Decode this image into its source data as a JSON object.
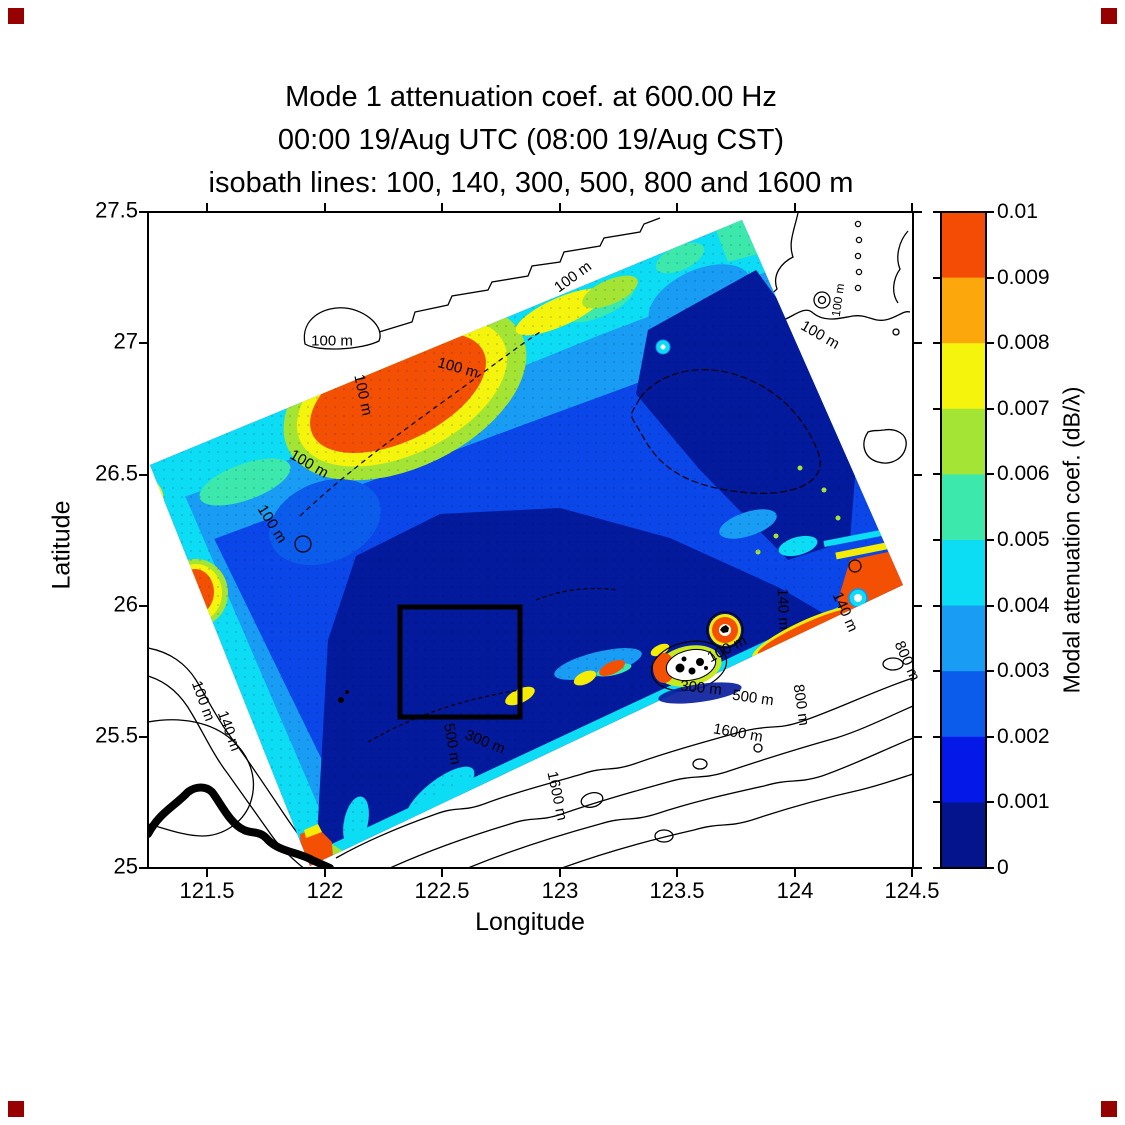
{
  "corner_marker_color": "#970000",
  "title": {
    "line1": "Mode 1 attenuation coef. at 600.00 Hz",
    "line2": "00:00 19/Aug UTC (08:00 19/Aug CST)",
    "line3": "isobath lines: 100, 140, 300, 500, 800 and 1600 m"
  },
  "axes": {
    "xlabel": "Longitude",
    "ylabel": "Latitude",
    "x_tick_labels": [
      "121.5",
      "122",
      "122.5",
      "123",
      "123.5",
      "124",
      "124.5"
    ],
    "y_tick_labels": [
      "27.5",
      "27",
      "26.5",
      "26",
      "25.5",
      "25"
    ]
  },
  "colorbar": {
    "label": "Modal attenuation coef. (dB/λ)",
    "tick_labels": [
      "0.01",
      "0.009",
      "0.008",
      "0.007",
      "0.006",
      "0.005",
      "0.004",
      "0.003",
      "0.002",
      "0.001",
      "0"
    ],
    "colors_top_to_bottom": [
      "#f44c04",
      "#fca80c",
      "#f4f40c",
      "#a4e434",
      "#3ce8ac",
      "#0cdcf4",
      "#189cf4",
      "#0c5cec",
      "#0418e8",
      "#04148c"
    ]
  },
  "map": {
    "contour_labels": [
      "100 m",
      "100 m",
      "100 m",
      "100 m",
      "100 m",
      "100 m",
      "100 m",
      "100 m",
      "100 m",
      "140 m",
      "140 m",
      "140 m",
      "100 m",
      "300 m",
      "500 m",
      "800 m",
      "1600 m",
      "300 m",
      "500 m",
      "800 m",
      "1600 m"
    ]
  },
  "chart_data": {
    "type": "heatmap",
    "title": "Mode 1 attenuation coef. at 600.00 Hz",
    "subtitle": "00:00 19/Aug UTC (08:00 19/Aug CST)",
    "note": "isobath lines: 100, 140, 300, 500, 800 and 1600 m",
    "xlabel": "Longitude",
    "ylabel": "Latitude",
    "xlim": [
      121.25,
      124.5
    ],
    "ylim": [
      25.0,
      27.5
    ],
    "x_ticks": [
      121.5,
      122.0,
      122.5,
      123.0,
      123.5,
      124.0,
      124.5
    ],
    "y_ticks": [
      25.0,
      25.5,
      26.0,
      26.5,
      27.0,
      27.5
    ],
    "grid": false,
    "colorbar": {
      "label": "Modal attenuation coef. (dB/λ)",
      "min": 0,
      "max": 0.01,
      "tick_step": 0.001,
      "n_color_bins": 10,
      "bin_colors_low_to_high": [
        "#04148c",
        "#0418e8",
        "#0c5cec",
        "#189cf4",
        "#0cdcf4",
        "#3ce8ac",
        "#a4e434",
        "#f4f40c",
        "#fca80c",
        "#f44c04"
      ]
    },
    "isobath_levels_m": [
      100,
      140,
      300,
      500,
      800,
      1600
    ],
    "model_domain_corners_lonlat": [
      [
        121.26,
        26.54
      ],
      [
        123.78,
        27.47
      ],
      [
        124.46,
        26.08
      ],
      [
        121.94,
        25.01
      ]
    ],
    "highlight_box_lonlat": {
      "lon": [
        122.32,
        122.83
      ],
      "lat": [
        25.58,
        26.0
      ]
    },
    "features": [
      {
        "name": "high-attenuation patch (~0.009-0.01 dB/wavelength)",
        "lon": 122.3,
        "lat": 26.8
      },
      {
        "name": "high-attenuation patch at west edge",
        "lon": 121.45,
        "lat": 26.05
      },
      {
        "name": "high-attenuation patch near east corner of domain",
        "lon": 124.34,
        "lat": 26.06
      },
      {
        "name": "low-attenuation basin (~0-0.001) over deep water center of domain",
        "lon": 123.2,
        "lat": 25.9
      },
      {
        "name": "ring/eddy feature with island at center",
        "lon": 123.7,
        "lat": 25.91
      },
      {
        "name": "island group with white halo",
        "lon": 123.55,
        "lat": 25.77
      },
      {
        "name": "small cyan ring feature",
        "lon": 123.44,
        "lat": 26.99
      },
      {
        "name": "Taiwan coastline (thick black) bottom-left",
        "lon": 121.6,
        "lat": 25.1
      },
      {
        "name": "bright shelf-break fringe with yellow/orange spots along SE domain edge",
        "lon": 123.3,
        "lat": 25.75
      }
    ]
  }
}
